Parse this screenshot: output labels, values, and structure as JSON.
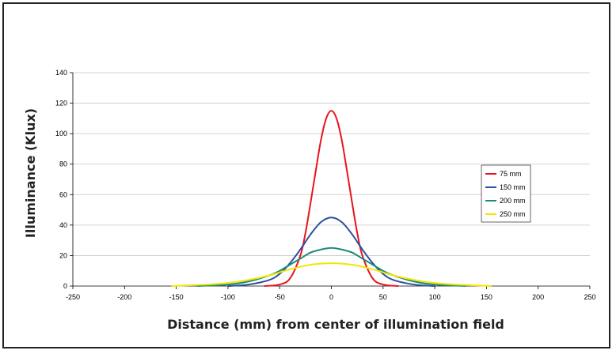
{
  "chart_data": {
    "type": "line",
    "title": "",
    "xlabel": "Distance (mm) from center of illumination field",
    "ylabel": "Illuminance (Klux)",
    "xlim": [
      -250,
      250
    ],
    "ylim": [
      0,
      140
    ],
    "xticks": [
      -250,
      -200,
      -150,
      -100,
      -50,
      0,
      50,
      100,
      150,
      200,
      250
    ],
    "yticks": [
      0,
      20,
      40,
      60,
      80,
      100,
      120,
      140
    ],
    "grid": "horizontal",
    "legend_position": "right",
    "series": [
      {
        "name": "75 mm",
        "color": "#e8141c",
        "x": [
          -65,
          -50,
          -40,
          -30,
          -25,
          -20,
          -15,
          -10,
          -5,
          0,
          5,
          10,
          15,
          20,
          25,
          30,
          40,
          50,
          65
        ],
        "y": [
          0,
          1,
          5,
          20,
          35,
          55,
          76,
          96,
          110,
          115,
          110,
          96,
          76,
          55,
          35,
          20,
          5,
          1,
          0
        ]
      },
      {
        "name": "150 mm",
        "color": "#2d4fa0",
        "x": [
          -100,
          -80,
          -60,
          -50,
          -40,
          -30,
          -20,
          -10,
          0,
          10,
          20,
          30,
          40,
          50,
          60,
          80,
          100
        ],
        "y": [
          0,
          1,
          4,
          8,
          15,
          24,
          34,
          42,
          45,
          42,
          34,
          24,
          15,
          8,
          4,
          1,
          0
        ]
      },
      {
        "name": "200 mm",
        "color": "#1d8a7a",
        "x": [
          -130,
          -100,
          -80,
          -60,
          -50,
          -40,
          -30,
          -20,
          -10,
          0,
          10,
          20,
          30,
          40,
          50,
          60,
          80,
          100,
          130
        ],
        "y": [
          0,
          1,
          3,
          7,
          10,
          14,
          18,
          22,
          24,
          25,
          24,
          22,
          18,
          14,
          10,
          7,
          3,
          1,
          0
        ]
      },
      {
        "name": "250 mm",
        "color": "#f2e600",
        "x": [
          -155,
          -120,
          -100,
          -80,
          -60,
          -40,
          -20,
          0,
          20,
          40,
          60,
          80,
          100,
          120,
          155
        ],
        "y": [
          0,
          1,
          2,
          4,
          7,
          11,
          14,
          15,
          14,
          11,
          7,
          4,
          2,
          1,
          0
        ]
      }
    ]
  }
}
